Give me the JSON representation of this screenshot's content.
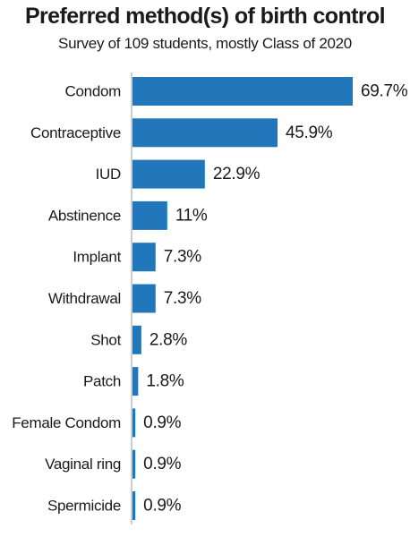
{
  "chart_data": {
    "type": "bar",
    "orientation": "horizontal",
    "title": "Preferred method(s) of birth control",
    "subtitle": "Survey of 109 students, mostly Class of 2020",
    "categories": [
      "Condom",
      "Contraceptive",
      "IUD",
      "Abstinence",
      "Implant",
      "Withdrawal",
      "Shot",
      "Patch",
      "Female Condom",
      "Vaginal ring",
      "Spermicide"
    ],
    "values": [
      69.7,
      45.9,
      22.9,
      11,
      7.3,
      7.3,
      2.8,
      1.8,
      0.9,
      0.9,
      0.9
    ],
    "value_labels": [
      "69.7%",
      "45.9%",
      "22.9%",
      "11%",
      "7.3%",
      "7.3%",
      "2.8%",
      "1.8%",
      "0.9%",
      "0.9%",
      "0.9%"
    ],
    "xlim": [
      0,
      69.7
    ],
    "grid": false,
    "bar_color": "#2277bb"
  }
}
